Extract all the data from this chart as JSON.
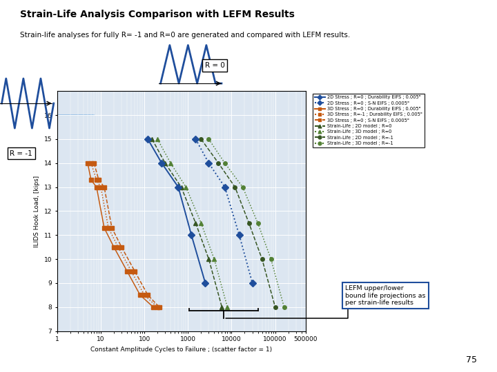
{
  "title": "Strain-Life Analysis Comparison with LEFM Results",
  "subtitle": "Strain-life analyses for fully R= -1 and R=0 are generated and compared with LEFM results.",
  "xlabel": "Constant Amplitude Cycles to Failure ; (scatter factor = 1)",
  "ylabel": "ILIDS Hook Load, [kips]",
  "xlim_log": [
    0,
    5.699
  ],
  "ylim": [
    7,
    17
  ],
  "yticks": [
    7,
    8,
    9,
    10,
    11,
    12,
    13,
    14,
    15,
    16
  ],
  "xtick_vals": [
    1,
    10,
    100,
    1000,
    10000,
    100000,
    500000
  ],
  "xtick_labels": [
    "1",
    "10",
    "100",
    "1000",
    "10000",
    "100000",
    "500000"
  ],
  "page_number": "75",
  "background_color": "#ffffff",
  "plot_bg_color": "#dce6f1",
  "legend_labels": [
    "2D Stress ; R=0 ; Durability EIFS ; 0.005\"",
    "2D Stress ; R=0 ; S-N EIFS ; 0.0005\"",
    "3D Stress ; R=0 ; Durability EIFS ; 0.005\"",
    "3D Stress ; R=-1 ; Durability EIFS ; 0.005\"",
    "3D Stress ; R=0 ; S-N EIFS ; 0.0005\"",
    "Strain-Life ; 2D model ; R=0",
    "Strain-Life ; 3D model ; R=0",
    "Strain-Life ; 2D model ; R=-1",
    "Strain-Life ; 3D model ; R=-1"
  ],
  "blue": "#1f4e9c",
  "orange": "#c55a11",
  "green_dark": "#375623",
  "green_med": "#538135",
  "lefm_line_color": "#9dc3e6",
  "annotation_text": "LEFM upper/lower\nbound life projections as\nper strain-life results",
  "r0_box_text": "R = 0",
  "rm1_box_text": "R = -1"
}
